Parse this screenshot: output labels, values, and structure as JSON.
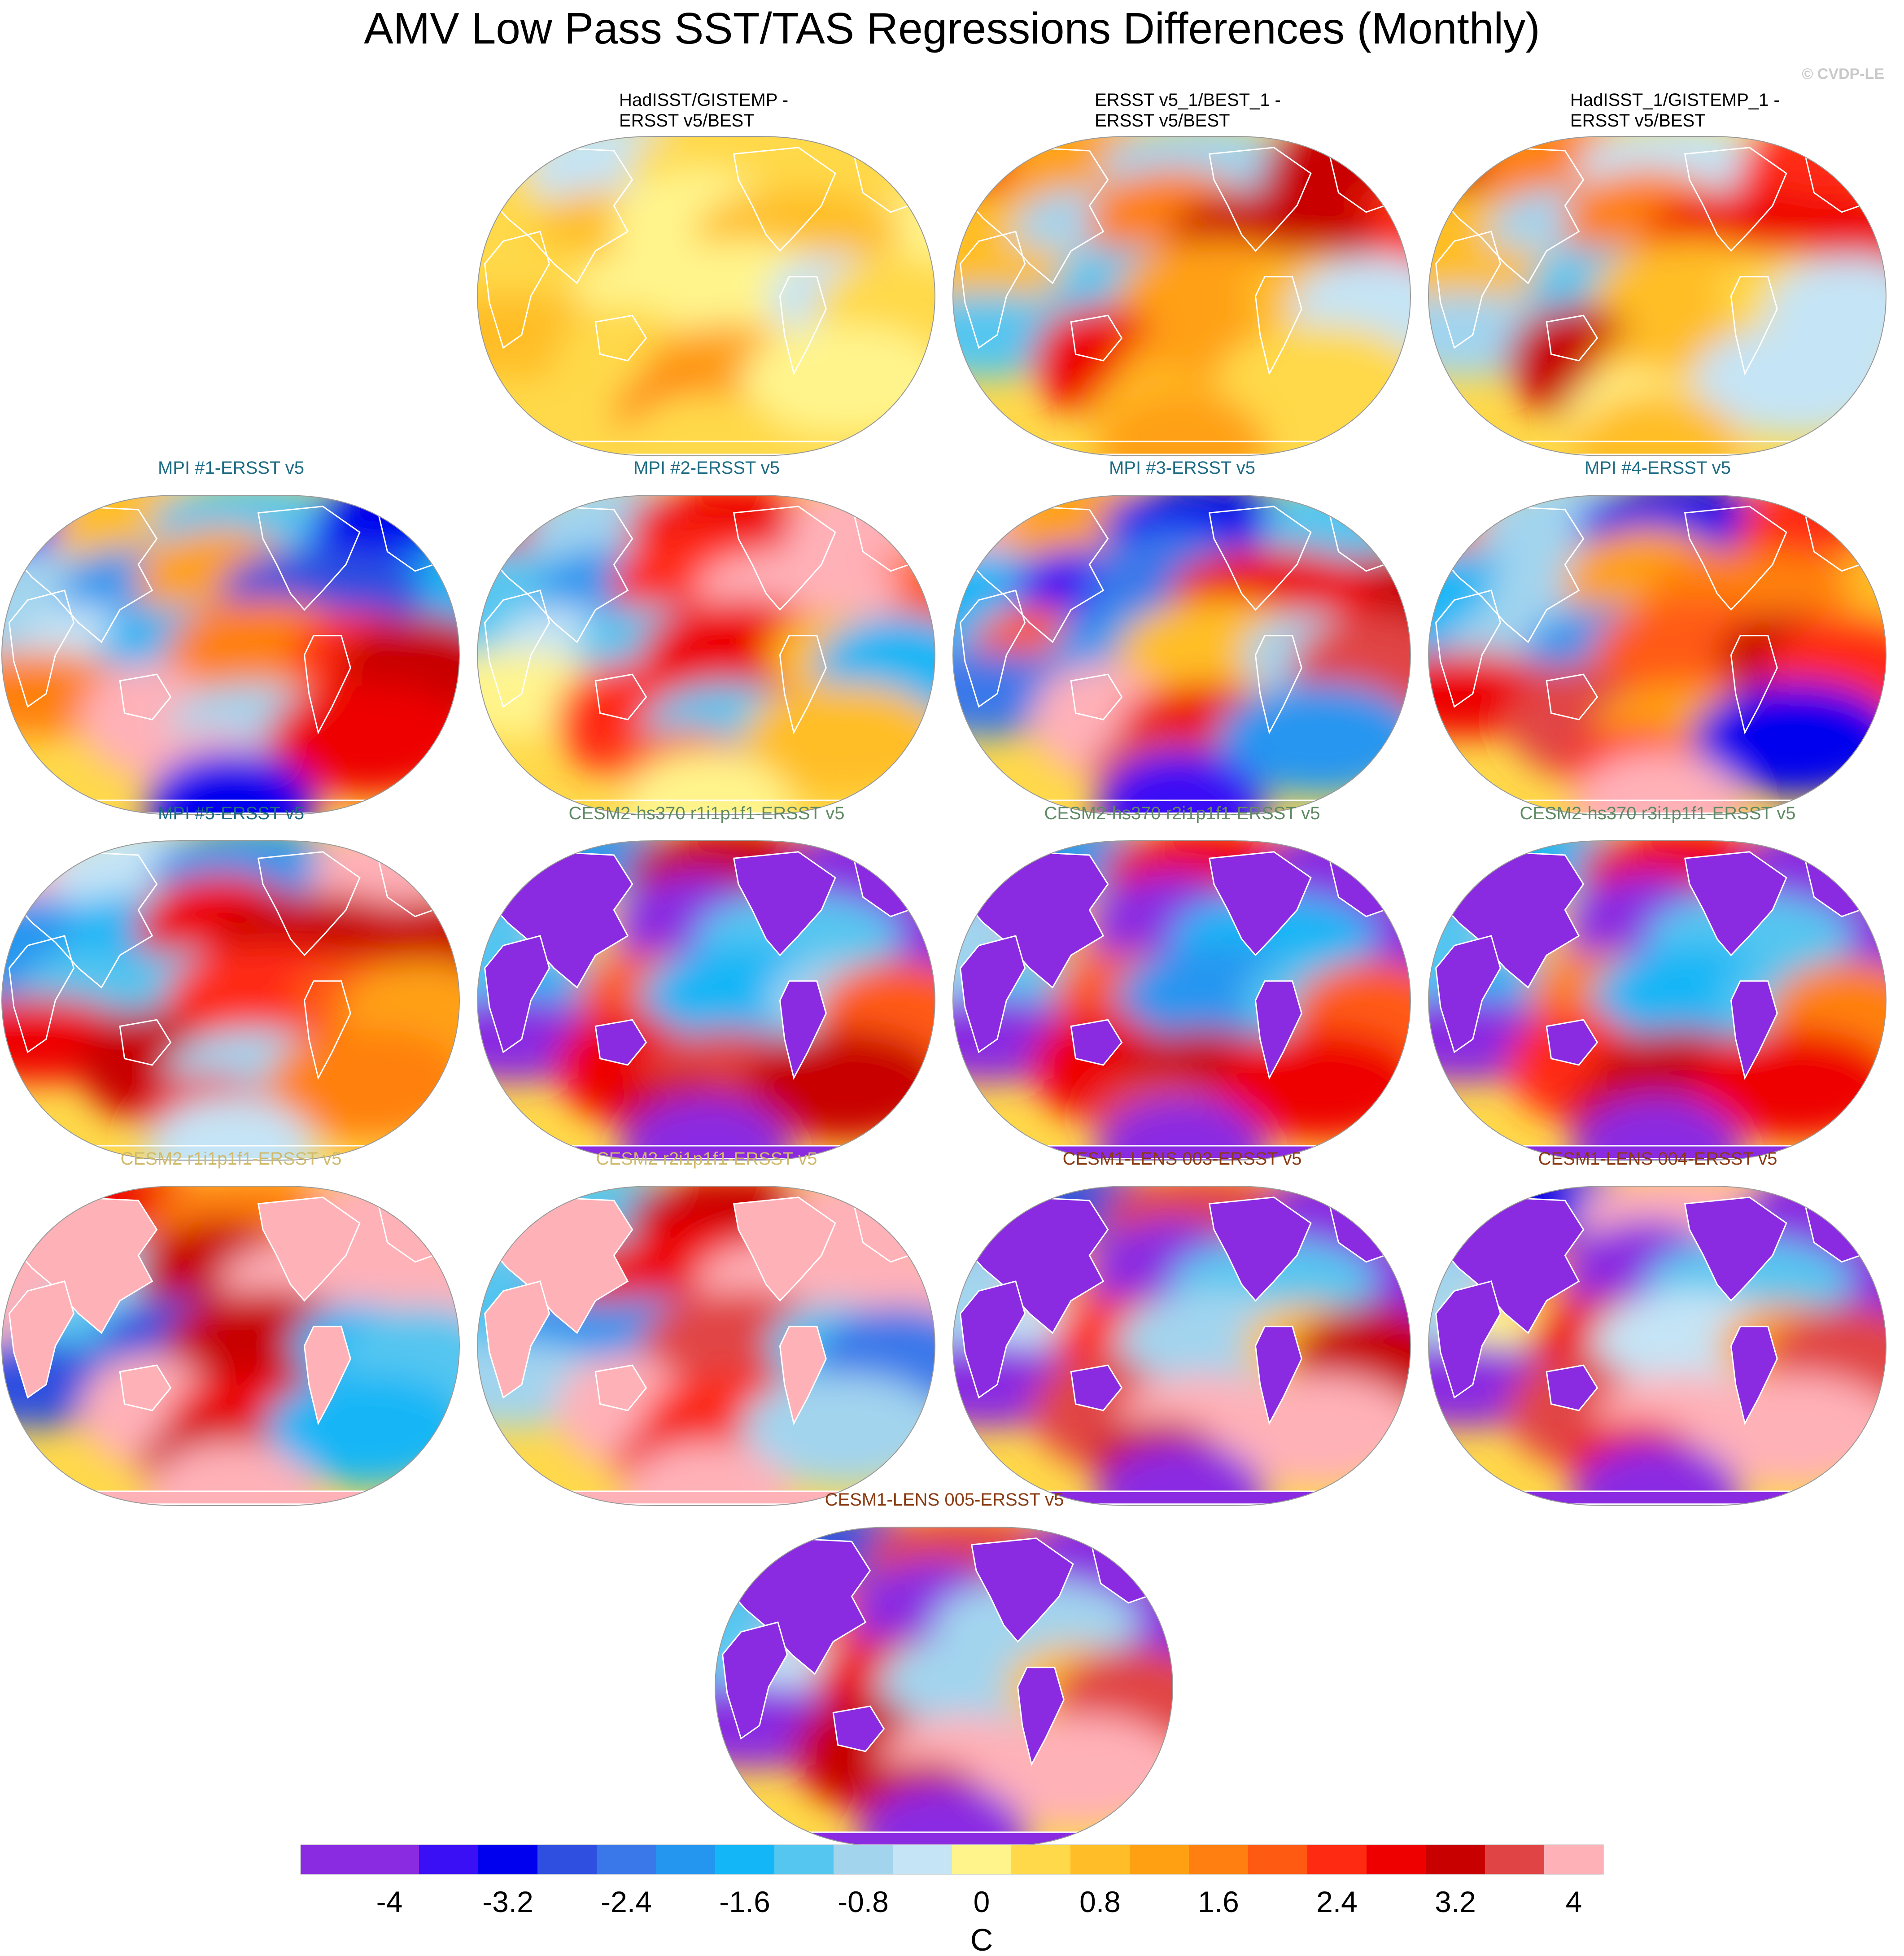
{
  "title": "AMV Low Pass SST/TAS Regressions Differences (Monthly)",
  "copyright": "© CVDP-LE",
  "colors": {
    "obs_title": "#000000",
    "mpi_title": "#1d6b84",
    "cesm2hs_title": "#5f8a64",
    "cesm2_title": "#d0ba6a",
    "cesm1_title": "#8a3a12",
    "coast": "#ffffff",
    "map_border": "#999999"
  },
  "chart_data": {
    "type": "heatmap",
    "projection": "Robinson (global map panels)",
    "units": "C",
    "colorbar": {
      "label": "C",
      "levels": [
        -4.4,
        -4.0,
        -3.6,
        -3.2,
        -2.8,
        -2.4,
        -2.0,
        -1.6,
        -1.2,
        -0.8,
        -0.4,
        0,
        0.4,
        0.8,
        1.2,
        1.6,
        2.0,
        2.4,
        2.8,
        3.2,
        3.6,
        4.0,
        4.4
      ],
      "tick_labels": [
        "-4",
        "-3.2",
        "-2.4",
        "-1.6",
        "-0.8",
        "0",
        "0.8",
        "1.6",
        "2.4",
        "3.2",
        "4"
      ],
      "tick_values": [
        -4,
        -3.2,
        -2.4,
        -1.6,
        -0.8,
        0,
        0.8,
        1.6,
        2.4,
        3.2,
        4
      ],
      "colors": [
        "#8a2be2",
        "#3b0ff5",
        "#0000ee",
        "#2f4fe0",
        "#3a78ea",
        "#2596f0",
        "#13b6f6",
        "#55c6f0",
        "#a2d4ee",
        "#c5e4f5",
        "#fff48c",
        "#ffd94a",
        "#ffbe27",
        "#ffa013",
        "#ff8010",
        "#ff5a12",
        "#ff2a12",
        "#ee0000",
        "#c80000",
        "#e14444",
        "#ffb1b8"
      ]
    },
    "panels": [
      {
        "title": [
          "HadISST/GISTEMP -",
          "ERSST v5/BEST"
        ],
        "group": "obs",
        "pattern": [
          0.2,
          -0.6,
          0.3,
          0.2,
          -0.4,
          0.1,
          0.5,
          -0.2,
          0.6,
          0.1,
          -0.3,
          -0.1,
          -0.5,
          0.0,
          0.4,
          0.2,
          0.8,
          -0.2,
          1.2,
          0.3
        ]
      },
      {
        "title": [
          "ERSST v5_1/BEST_1 -",
          "ERSST v5/BEST"
        ],
        "group": "obs",
        "pattern": [
          2.6,
          0.8,
          -1.0,
          3.0,
          2.2,
          0.6,
          -1.2,
          1.4,
          2.8,
          0.4,
          -1.6,
          0.8,
          0.6,
          -0.6,
          -1.4,
          2.4,
          0.8,
          0.2,
          0.6,
          1.0
        ]
      },
      {
        "title": [
          "HadISST_1/GISTEMP_1 -",
          "ERSST v5/BEST"
        ],
        "group": "obs",
        "pattern": [
          3.0,
          1.2,
          -0.6,
          2.2,
          2.6,
          0.4,
          -1.0,
          1.2,
          2.4,
          0.6,
          -1.4,
          0.6,
          0.2,
          -0.8,
          -1.2,
          2.8,
          0.6,
          -0.6,
          -0.2,
          0.4
        ]
      },
      {
        "title": [
          "MPI #1-ERSST v5"
        ],
        "group": "mpi",
        "pattern": [
          -4.0,
          0.6,
          -1.6,
          -3.6,
          -1.8,
          -1.2,
          -2.4,
          0.8,
          -3.2,
          -0.6,
          -1.8,
          1.2,
          2.2,
          2.8,
          1.4,
          3.6,
          -1.2,
          2.4,
          4.0,
          -3.4
        ]
      },
      {
        "title": [
          "MPI #2-ERSST v5"
        ],
        "group": "mpi",
        "pattern": [
          3.4,
          -1.2,
          2.6,
          4.2,
          1.8,
          -1.6,
          -2.2,
          2.0,
          3.6,
          -0.8,
          -1.4,
          2.4,
          0.4,
          -1.8,
          -0.4,
          2.2,
          -1.4,
          0.6,
          1.6,
          -0.4
        ]
      },
      {
        "title": [
          "MPI #3-ERSST v5"
        ],
        "group": "mpi",
        "pattern": [
          4.2,
          0.8,
          -3.6,
          -1.4,
          2.8,
          -1.8,
          -3.8,
          -2.6,
          2.4,
          1.6,
          -2.4,
          0.6,
          -1.2,
          3.2,
          -2.6,
          3.6,
          2.6,
          -2.4,
          3.2,
          -4.0
        ]
      },
      {
        "title": [
          "MPI #4-ERSST v5"
        ],
        "group": "mpi",
        "pattern": [
          1.4,
          -1.2,
          -3.6,
          2.0,
          0.6,
          -1.8,
          -1.2,
          1.0,
          1.2,
          -1.0,
          -2.2,
          1.6,
          2.8,
          2.2,
          2.6,
          3.2,
          0.8,
          -3.4,
          2.0,
          3.6
        ]
      },
      {
        "title": [
          "MPI #5-ERSST v5"
        ],
        "group": "mpi",
        "pattern": [
          4.2,
          -0.8,
          -2.2,
          4.4,
          2.8,
          -2.4,
          -2.0,
          2.6,
          3.0,
          -1.6,
          -1.4,
          2.2,
          1.6,
          0.8,
          2.4,
          2.8,
          -1.2,
          1.4,
          2.4,
          -0.8
        ]
      },
      {
        "title": [
          "CESM2-hs370 r1i1p1f1-ERSST v5"
        ],
        "group": "cesm2hs",
        "pattern": [
          -4.4,
          -2.4,
          2.8,
          -4.4,
          -4.4,
          -1.4,
          0.6,
          -4.4,
          -1.6,
          -1.8,
          1.6,
          -2.0,
          -1.2,
          1.8,
          -4.4,
          2.6,
          3.2,
          2.8,
          3.0,
          -4.4
        ]
      },
      {
        "title": [
          "CESM2-hs370 r2i1p1f1-ERSST v5"
        ],
        "group": "cesm2hs",
        "pattern": [
          -4.4,
          -2.2,
          2.4,
          -4.4,
          -4.4,
          -1.2,
          0.8,
          -4.4,
          -1.8,
          -1.6,
          1.8,
          -2.2,
          -1.4,
          1.6,
          -4.4,
          2.4,
          3.0,
          2.6,
          3.2,
          -4.4
        ]
      },
      {
        "title": [
          "CESM2-hs370 r3i1p1f1-ERSST v5"
        ],
        "group": "cesm2hs",
        "pattern": [
          -4.4,
          -2.0,
          2.6,
          -4.4,
          -4.4,
          -1.6,
          0.4,
          -4.4,
          -1.4,
          -1.8,
          1.4,
          -2.0,
          -1.6,
          1.4,
          -4.4,
          2.2,
          2.8,
          2.6,
          3.0,
          -4.4
        ]
      },
      {
        "title": [
          "CESM2 r1i1p1f1-ERSST v5"
        ],
        "group": "cesm2",
        "pattern": [
          4.4,
          2.6,
          1.2,
          4.4,
          4.4,
          3.6,
          -1.2,
          3.0,
          4.4,
          -1.4,
          -3.2,
          2.8,
          -1.8,
          -1.6,
          -3.0,
          4.4,
          2.4,
          -2.0,
          3.0,
          4.4
        ]
      },
      {
        "title": [
          "CESM2 r2i1p1f1-ERSST v5"
        ],
        "group": "cesm2",
        "pattern": [
          4.4,
          -1.6,
          2.8,
          4.4,
          4.4,
          -1.4,
          3.2,
          2.6,
          4.4,
          -2.2,
          -2.4,
          3.4,
          -1.4,
          -2.8,
          -1.2,
          4.4,
          2.0,
          -1.0,
          2.6,
          4.4
        ]
      },
      {
        "title": [
          "CESM1-LENS 003-ERSST v5"
        ],
        "group": "cesm1",
        "pattern": [
          -4.4,
          -3.2,
          3.4,
          -4.4,
          -4.4,
          -1.2,
          1.2,
          -4.4,
          -1.6,
          -0.6,
          2.2,
          -1.0,
          0.6,
          3.0,
          -4.4,
          3.2,
          3.8,
          4.2,
          2.8,
          -4.4
        ]
      },
      {
        "title": [
          "CESM1-LENS 004-ERSST v5"
        ],
        "group": "cesm1",
        "pattern": [
          -4.4,
          -3.4,
          3.6,
          -4.4,
          -4.4,
          -1.0,
          1.4,
          -4.4,
          -1.4,
          -0.4,
          2.6,
          -0.8,
          0.8,
          3.2,
          -4.4,
          3.4,
          3.6,
          4.0,
          2.6,
          -4.4
        ]
      },
      {
        "title": [
          "CESM1-LENS 005-ERSST v5"
        ],
        "group": "cesm1",
        "pattern": [
          -4.4,
          -3.0,
          3.2,
          -4.4,
          -4.4,
          -1.4,
          1.6,
          -4.4,
          -1.2,
          -0.8,
          2.4,
          -1.2,
          0.4,
          3.4,
          -4.4,
          3.0,
          3.6,
          3.8,
          3.0,
          -4.4
        ]
      }
    ]
  }
}
